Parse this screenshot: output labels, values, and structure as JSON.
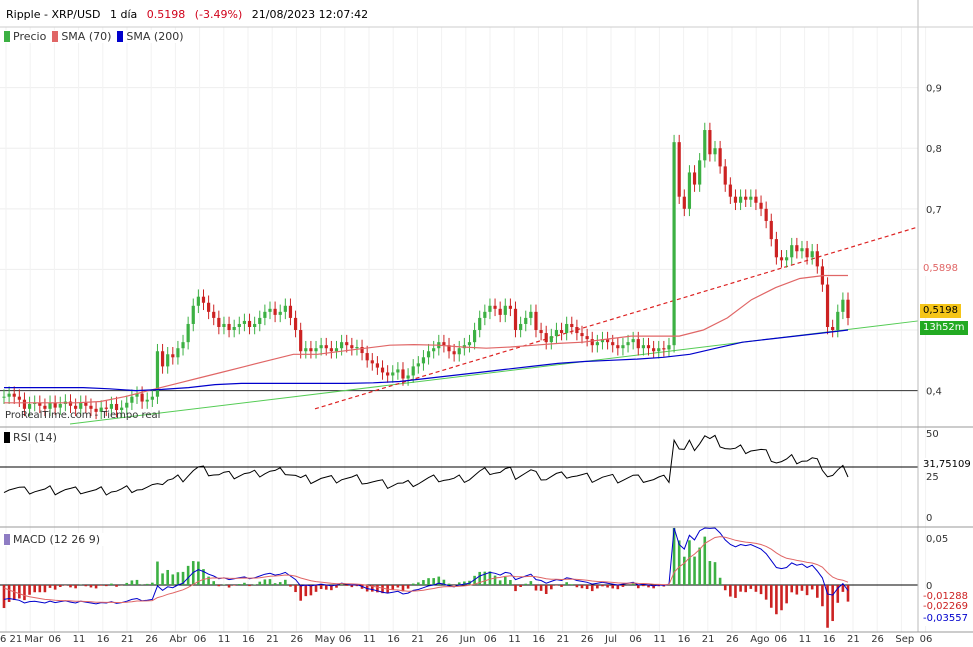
{
  "header": {
    "instrument": "Ripple - XRP/USD",
    "timeframe": "1 día",
    "price": "0.5198",
    "change": "(-3.49%)",
    "datetime": "21/08/2023 12:07:42"
  },
  "legend_price": [
    {
      "name": "Precio",
      "color": "#3cb043"
    },
    {
      "name": "SMA (70)",
      "color": "#e06666"
    },
    {
      "name": "SMA (200)",
      "color": "#0000cc"
    }
  ],
  "legend_rsi": {
    "name": "RSI (14)",
    "color": "#000000"
  },
  "legend_macd": {
    "name": "MACD (12 26 9)",
    "color": "#8e7cc3"
  },
  "watermark": "ProRealTime.com  - Tiempo real",
  "price_labels": {
    "sma70": "0,5898",
    "last": "0,5198",
    "countdown": "13h52m",
    "rsi": "31,75109",
    "macd1": "-0,01288",
    "macd2": "-0,02269",
    "macd3": "-0,03557"
  },
  "colors": {
    "up": "#3cb043",
    "down": "#cc2222",
    "sma70": "#e06666",
    "sma200": "#0000cc",
    "trend_green": "#55cc55",
    "trend_red": "#dd2222"
  },
  "chart_data": {
    "type": "candlestick",
    "title": "Ripple - XRP/USD",
    "price_ticks": [
      "0,4",
      "0,5",
      "0,6",
      "0,7",
      "0,8",
      "0,9"
    ],
    "price_ylim": [
      0.34,
      1.0
    ],
    "rsi_ticks": [
      "0",
      "25",
      "50"
    ],
    "macd_ticks": [
      "0",
      "0,05"
    ],
    "x_ticks": [
      "6 21",
      "Mar",
      "06",
      "11",
      "16",
      "21",
      "26",
      "Abr",
      "06",
      "11",
      "16",
      "21",
      "26",
      "May",
      "06",
      "11",
      "16",
      "21",
      "26",
      "Jun",
      "06",
      "11",
      "16",
      "21",
      "26",
      "Jul",
      "06",
      "11",
      "16",
      "21",
      "26",
      "Ago",
      "06",
      "11",
      "16",
      "21",
      "26",
      "Sep",
      "06"
    ],
    "horizontal_line": 0.4,
    "closes": [
      0.39,
      0.395,
      0.39,
      0.385,
      0.37,
      0.378,
      0.38,
      0.375,
      0.37,
      0.38,
      0.372,
      0.378,
      0.382,
      0.375,
      0.37,
      0.38,
      0.375,
      0.37,
      0.365,
      0.372,
      0.37,
      0.378,
      0.368,
      0.372,
      0.38,
      0.39,
      0.395,
      0.382,
      0.385,
      0.39,
      0.465,
      0.44,
      0.46,
      0.455,
      0.47,
      0.48,
      0.51,
      0.54,
      0.555,
      0.545,
      0.53,
      0.52,
      0.505,
      0.51,
      0.5,
      0.505,
      0.51,
      0.515,
      0.505,
      0.51,
      0.52,
      0.53,
      0.535,
      0.525,
      0.53,
      0.54,
      0.52,
      0.5,
      0.465,
      0.47,
      0.465,
      0.47,
      0.475,
      0.47,
      0.465,
      0.47,
      0.48,
      0.475,
      0.47,
      0.472,
      0.462,
      0.45,
      0.445,
      0.438,
      0.43,
      0.425,
      0.43,
      0.435,
      0.42,
      0.425,
      0.44,
      0.445,
      0.455,
      0.465,
      0.47,
      0.48,
      0.475,
      0.465,
      0.46,
      0.47,
      0.475,
      0.48,
      0.5,
      0.52,
      0.53,
      0.54,
      0.535,
      0.525,
      0.54,
      0.535,
      0.5,
      0.51,
      0.52,
      0.53,
      0.5,
      0.495,
      0.48,
      0.49,
      0.5,
      0.495,
      0.51,
      0.505,
      0.495,
      0.49,
      0.485,
      0.475,
      0.48,
      0.485,
      0.48,
      0.475,
      0.47,
      0.475,
      0.48,
      0.485,
      0.47,
      0.475,
      0.47,
      0.465,
      0.47,
      0.468,
      0.475,
      0.81,
      0.72,
      0.7,
      0.76,
      0.74,
      0.78,
      0.83,
      0.79,
      0.8,
      0.77,
      0.74,
      0.72,
      0.71,
      0.72,
      0.715,
      0.72,
      0.71,
      0.7,
      0.68,
      0.65,
      0.62,
      0.615,
      0.62,
      0.64,
      0.63,
      0.635,
      0.62,
      0.63,
      0.605,
      0.575,
      0.505,
      0.5,
      0.53,
      0.55,
      0.5198
    ],
    "sma70": [
      0.38,
      0.38,
      0.38,
      0.38,
      0.382,
      0.39,
      0.4,
      0.41,
      0.42,
      0.43,
      0.44,
      0.45,
      0.46,
      0.46,
      0.465,
      0.47,
      0.475,
      0.476,
      0.475,
      0.472,
      0.47,
      0.472,
      0.475,
      0.478,
      0.48,
      0.485,
      0.49,
      0.49,
      0.49,
      0.5,
      0.52,
      0.55,
      0.57,
      0.585,
      0.59,
      0.59
    ],
    "sma200": [
      0.405,
      0.405,
      0.405,
      0.405,
      0.403,
      0.4,
      0.402,
      0.405,
      0.41,
      0.412,
      0.412,
      0.412,
      0.412,
      0.412,
      0.413,
      0.415,
      0.42,
      0.425,
      0.43,
      0.435,
      0.44,
      0.445,
      0.448,
      0.45,
      0.452,
      0.455,
      0.46,
      0.47,
      0.48,
      0.485,
      0.49,
      0.495,
      0.5
    ]
  }
}
